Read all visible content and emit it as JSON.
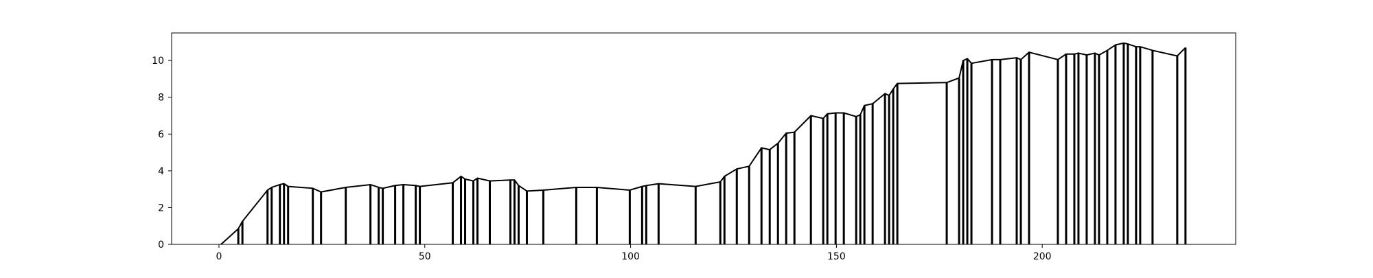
{
  "chart_data": {
    "type": "line",
    "title": "",
    "xlabel": "",
    "ylabel": "",
    "xlim": [
      -11.5,
      247
    ],
    "ylim": [
      0,
      11.5
    ],
    "xticks": [
      0,
      50,
      100,
      150,
      200
    ],
    "yticks": [
      0,
      2,
      4,
      6,
      8,
      10
    ],
    "grid": false,
    "legend": "none",
    "line_color": "#000000",
    "drop_lines": true,
    "x": [
      0.5,
      4.7,
      5.7,
      11.8,
      12.8,
      14.8,
      15.8,
      16.8,
      22.8,
      24.8,
      30.8,
      36.8,
      38.8,
      39.8,
      42.8,
      44.8,
      47.8,
      48.8,
      56.8,
      58.8,
      59.8,
      61.8,
      62.8,
      65.8,
      70.8,
      71.8,
      72.8,
      74.8,
      78.8,
      86.8,
      91.8,
      99.8,
      102.8,
      103.8,
      106.8,
      115.8,
      121.8,
      122.8,
      125.8,
      128.8,
      131.8,
      133.8,
      135.8,
      137.8,
      139.8,
      143.8,
      146.8,
      147.8,
      149.8,
      151.8,
      154.8,
      155.8,
      156.8,
      158.8,
      161.8,
      162.8,
      163.8,
      164.8,
      176.8,
      179.8,
      180.8,
      181.8,
      182.8,
      187.8,
      189.8,
      193.8,
      194.8,
      196.8,
      203.8,
      205.8,
      207.8,
      208.8,
      210.8,
      212.8,
      213.8,
      215.8,
      217.8,
      219.8,
      220.8,
      222.8,
      223.8,
      226.8,
      232.8,
      234.8
    ],
    "values": [
      0.0,
      0.85,
      1.25,
      2.95,
      3.1,
      3.25,
      3.3,
      3.15,
      3.05,
      2.85,
      3.1,
      3.25,
      3.1,
      3.05,
      3.2,
      3.25,
      3.2,
      3.15,
      3.35,
      3.7,
      3.55,
      3.45,
      3.6,
      3.45,
      3.5,
      3.5,
      3.2,
      2.9,
      2.95,
      3.1,
      3.1,
      2.95,
      3.15,
      3.2,
      3.3,
      3.15,
      3.4,
      3.7,
      4.1,
      4.25,
      5.25,
      5.15,
      5.5,
      6.05,
      6.1,
      7.0,
      6.85,
      7.1,
      7.15,
      7.15,
      6.95,
      7.05,
      7.55,
      7.65,
      8.2,
      8.1,
      8.45,
      8.75,
      8.8,
      9.05,
      10.0,
      10.1,
      9.85,
      10.05,
      10.05,
      10.15,
      10.05,
      10.45,
      10.05,
      10.35,
      10.35,
      10.4,
      10.3,
      10.4,
      10.3,
      10.55,
      10.85,
      10.95,
      10.9,
      10.75,
      10.75,
      10.55,
      10.25,
      10.7
    ]
  }
}
